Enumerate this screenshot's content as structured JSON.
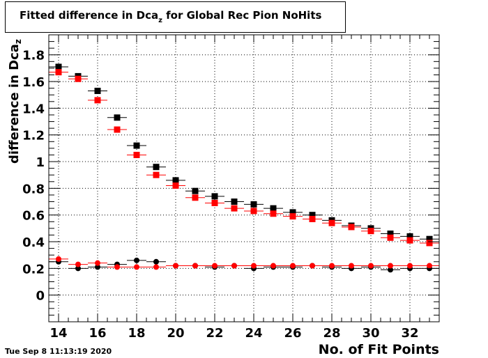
{
  "title": {
    "prefix": "Fitted difference in Dca",
    "subscript": "z",
    "suffix": " for Global Rec Pion NoHits"
  },
  "timestamp": "Tue Sep  8 11:13:19 2020",
  "chart_data": {
    "type": "scatter",
    "title": "Fitted difference in Dcaz for Global Rec Pion NoHits",
    "xlabel": "No. of Fit Points",
    "ylabel": "difference in Dcaz",
    "ylabel_prefix": "difference in Dca",
    "ylabel_subscript": "z",
    "xlim": [
      13.5,
      33.5
    ],
    "ylim": [
      -0.2,
      1.95
    ],
    "x_ticks": [
      14,
      16,
      18,
      20,
      22,
      24,
      26,
      28,
      30,
      32
    ],
    "y_ticks": [
      0,
      0.2,
      0.4,
      0.6,
      0.8,
      1,
      1.2,
      1.4,
      1.6,
      1.8
    ],
    "y_tick_labels": [
      "0",
      "0.2",
      "0.4",
      "0.6",
      "0.8",
      "1",
      "1.2",
      "1.4",
      "1.6",
      "1.8"
    ],
    "grid": true,
    "x": [
      14,
      15,
      16,
      17,
      18,
      19,
      20,
      21,
      22,
      23,
      24,
      25,
      26,
      27,
      28,
      29,
      30,
      31,
      32,
      33
    ],
    "series": [
      {
        "marker": "square",
        "color": "#000000",
        "values": [
          1.71,
          1.64,
          1.53,
          1.33,
          1.12,
          0.96,
          0.86,
          0.78,
          0.74,
          0.7,
          0.68,
          0.65,
          0.62,
          0.6,
          0.56,
          0.52,
          0.5,
          0.46,
          0.44,
          0.42
        ]
      },
      {
        "marker": "square",
        "color": "#ff0000",
        "values": [
          1.67,
          1.62,
          1.46,
          1.24,
          1.05,
          0.9,
          0.82,
          0.73,
          0.69,
          0.65,
          0.63,
          0.61,
          0.59,
          0.57,
          0.54,
          0.51,
          0.48,
          0.43,
          0.41,
          0.39
        ]
      },
      {
        "marker": "circle",
        "color": "#000000",
        "values": [
          0.25,
          0.2,
          0.21,
          0.23,
          0.26,
          0.25,
          0.22,
          0.22,
          0.21,
          0.22,
          0.2,
          0.21,
          0.21,
          0.22,
          0.21,
          0.2,
          0.21,
          0.19,
          0.2,
          0.2
        ]
      },
      {
        "marker": "circle",
        "color": "#ff0000",
        "values": [
          0.27,
          0.23,
          0.24,
          0.21,
          0.21,
          0.21,
          0.22,
          0.22,
          0.22,
          0.22,
          0.22,
          0.22,
          0.22,
          0.22,
          0.22,
          0.22,
          0.22,
          0.22,
          0.22,
          0.22
        ]
      }
    ]
  }
}
